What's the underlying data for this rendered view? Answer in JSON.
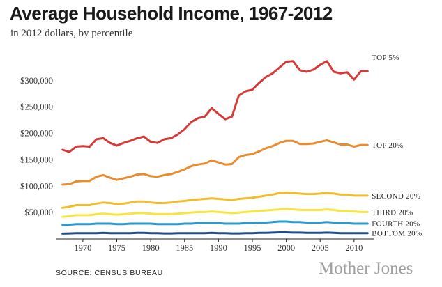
{
  "header": {
    "title": "Average Household Income, 1967-2012",
    "subtitle": "in 2012 dollars, by percentile"
  },
  "source": "SOURCE: CENSUS BUREAU",
  "brand": "Mother Jones",
  "chart_data": {
    "type": "line",
    "title": "Average Household Income, 1967-2012",
    "subtitle": "in 2012 dollars, by percentile",
    "xlim": [
      1966,
      2013
    ],
    "ylim": [
      0,
      350000
    ],
    "y_ticks": [
      50000,
      100000,
      150000,
      200000,
      250000,
      300000
    ],
    "y_tick_labels": [
      "$50,000",
      "$100,000",
      "$150,000",
      "$200,000",
      "$250,000",
      "$300,000"
    ],
    "x_ticks": [
      1970,
      1975,
      1980,
      1985,
      1990,
      1995,
      2000,
      2005,
      2010
    ],
    "x_tick_labels": [
      "1970",
      "1975",
      "1980",
      "1985",
      "1990",
      "1995",
      "2000",
      "2005",
      "2010"
    ],
    "grid": false,
    "legend": "inline labels at right end of lines",
    "x": [
      1967,
      1968,
      1969,
      1970,
      1971,
      1972,
      1973,
      1974,
      1975,
      1976,
      1977,
      1978,
      1979,
      1980,
      1981,
      1982,
      1983,
      1984,
      1985,
      1986,
      1987,
      1988,
      1989,
      1990,
      1991,
      1992,
      1993,
      1994,
      1995,
      1996,
      1997,
      1998,
      1999,
      2000,
      2001,
      2002,
      2003,
      2004,
      2005,
      2006,
      2007,
      2008,
      2009,
      2010,
      2011,
      2012
    ],
    "series": [
      {
        "name": "TOP 5%",
        "color": "#d63a36",
        "values": [
          169000,
          165000,
          175000,
          176000,
          175000,
          189000,
          191000,
          182000,
          177000,
          182000,
          186000,
          191000,
          194000,
          184000,
          182000,
          189000,
          191000,
          198000,
          208000,
          222000,
          229000,
          232000,
          248000,
          237000,
          227000,
          232000,
          272000,
          280000,
          283000,
          296000,
          307000,
          314000,
          325000,
          336000,
          337000,
          320000,
          317000,
          321000,
          330000,
          337000,
          317000,
          314000,
          316000,
          302000,
          318000,
          318000
        ]
      },
      {
        "name": "TOP 20%",
        "color": "#e88c2e",
        "values": [
          103000,
          104000,
          109000,
          110000,
          110000,
          118000,
          121000,
          116000,
          112000,
          115000,
          118000,
          122000,
          123000,
          119000,
          118000,
          121000,
          123000,
          127000,
          132000,
          138000,
          141000,
          143000,
          149000,
          145000,
          141000,
          142000,
          155000,
          159000,
          161000,
          166000,
          172000,
          176000,
          182000,
          186000,
          186000,
          180000,
          180000,
          181000,
          184000,
          187000,
          183000,
          179000,
          179000,
          175000,
          178000,
          178000
        ]
      },
      {
        "name": "SECOND 20%",
        "color": "#f2bd2c",
        "values": [
          59000,
          61000,
          64000,
          64000,
          64000,
          67000,
          69000,
          68000,
          66000,
          67000,
          69000,
          71000,
          71000,
          69000,
          68000,
          68000,
          69000,
          71000,
          72000,
          74000,
          75000,
          76000,
          77000,
          76000,
          75000,
          74000,
          76000,
          77000,
          78000,
          80000,
          82000,
          84000,
          87000,
          88000,
          87000,
          86000,
          85000,
          85000,
          86000,
          87000,
          86000,
          84000,
          84000,
          82000,
          82000,
          82000
        ]
      },
      {
        "name": "THIRD 20%",
        "color": "#f7e640",
        "values": [
          42000,
          43000,
          45000,
          45000,
          45000,
          47000,
          48000,
          47000,
          46000,
          47000,
          48000,
          49000,
          49000,
          48000,
          47000,
          47000,
          47000,
          48000,
          49000,
          50000,
          51000,
          51000,
          52000,
          51000,
          50000,
          49000,
          50000,
          51000,
          52000,
          53000,
          54000,
          55000,
          56000,
          57000,
          56000,
          55000,
          55000,
          55000,
          55000,
          56000,
          55000,
          53000,
          53000,
          52000,
          51000,
          51000
        ]
      },
      {
        "name": "FOURTH 20%",
        "color": "#2a9ad3",
        "values": [
          26000,
          27000,
          28000,
          28000,
          28000,
          29000,
          29000,
          29000,
          28000,
          28000,
          29000,
          29000,
          29000,
          29000,
          28000,
          28000,
          28000,
          28000,
          29000,
          29000,
          30000,
          30000,
          30000,
          30000,
          29000,
          29000,
          29000,
          30000,
          30000,
          31000,
          31000,
          32000,
          33000,
          33000,
          32000,
          32000,
          31000,
          31000,
          31000,
          32000,
          31000,
          30000,
          30000,
          29000,
          29000,
          29000
        ]
      },
      {
        "name": "BOTTOM 20%",
        "color": "#1e4f8c",
        "values": [
          10000,
          10500,
          11000,
          11000,
          11000,
          11000,
          11500,
          11000,
          11000,
          11000,
          11000,
          11500,
          11500,
          11000,
          11000,
          10500,
          10500,
          11000,
          11000,
          11000,
          11000,
          11000,
          11500,
          11000,
          11000,
          10500,
          10500,
          11000,
          11000,
          11500,
          11500,
          12000,
          12500,
          12500,
          12000,
          12000,
          11500,
          11500,
          11500,
          12000,
          11500,
          11000,
          11000,
          11000,
          11000,
          11000
        ]
      }
    ]
  }
}
